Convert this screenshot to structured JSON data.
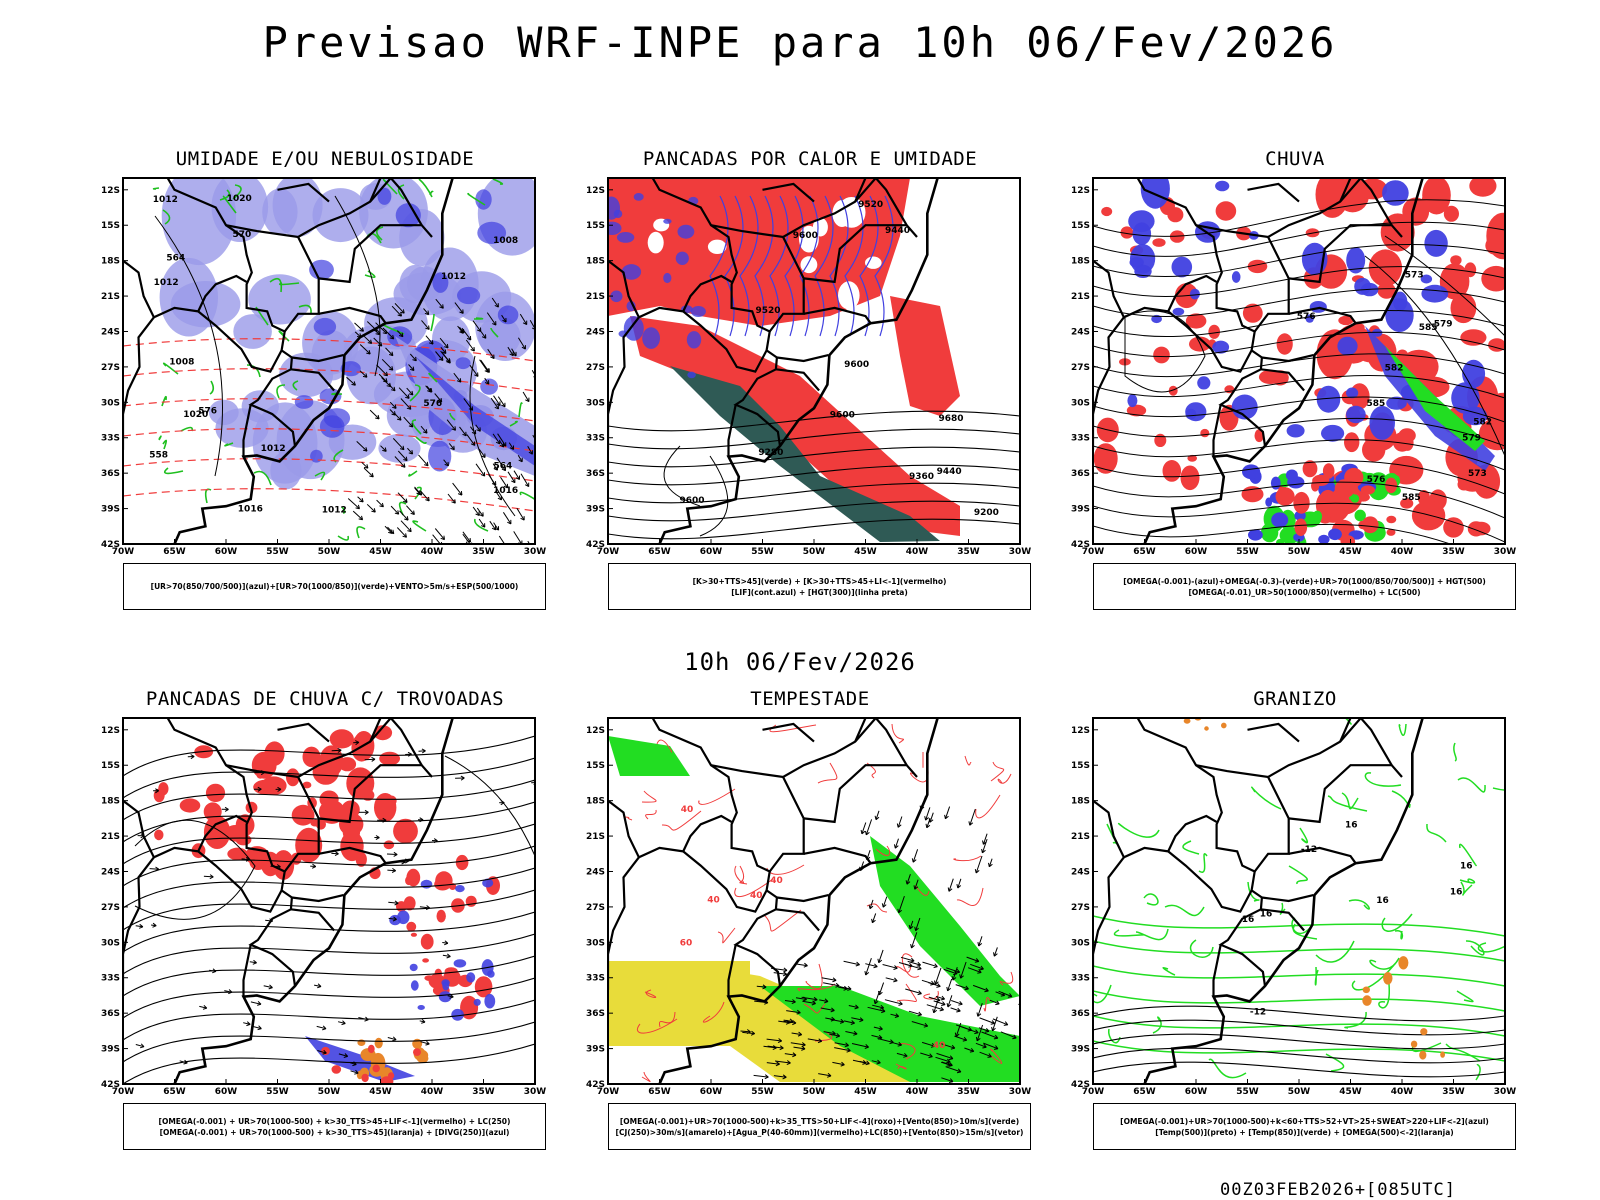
{
  "main_title": "Previsao WRF-INPE  para 10h 06/Fev/2026",
  "mid_title": "10h 06/Fev/2026",
  "footer": "00Z03FEB2026+[085UTC]",
  "axes": {
    "lat_labels": [
      "12S",
      "15S",
      "18S",
      "21S",
      "24S",
      "27S",
      "30S",
      "33S",
      "36S",
      "39S",
      "42S"
    ],
    "lon_labels": [
      "70W",
      "65W",
      "60W",
      "55W",
      "50W",
      "45W",
      "40W",
      "35W",
      "30W"
    ]
  },
  "colors": {
    "blue": "#4040e0",
    "lavender": "#9a9ae8",
    "green": "#1fbf1f",
    "bright_green": "#22dd22",
    "red": "#f03c3c",
    "dark_teal": "#2f5a55",
    "yellow": "#e8dc3a",
    "orange": "#e8862a"
  },
  "panels": [
    {
      "title": "UMIDADE E/OU NEBULOSIDADE",
      "legend": [
        "[UR>70(850/700/500)](azul)+[UR>70(1000/850)](verde)+VENTO>5m/s+ESP(500/1000)"
      ],
      "contour_labels": [
        "1012",
        "1012",
        "1012",
        "1012",
        "1012",
        "1016",
        "1016",
        "1020",
        "1020",
        "1008",
        "1008",
        "576",
        "576",
        "570",
        "564",
        "558",
        "564"
      ]
    },
    {
      "title": "PANCADAS POR CALOR E UMIDADE",
      "legend": [
        "[K>30+TTS>45](verde) + [K>30+TTS>45+LI<-1](vermelho)",
        "[LIF](cont.azul) + [HGT(300)](linha preta)"
      ],
      "contour_labels": [
        "9600",
        "9680",
        "9600",
        "9600",
        "9600",
        "9520",
        "9440",
        "9440",
        "9360",
        "9280",
        "9200",
        "9520"
      ]
    },
    {
      "title": "CHUVA",
      "legend": [
        "[OMEGA(-0.001)-(azul)+OMEGA(-0.3)-(verde)+UR>70(1000/850/700/500)] + HGT(500)",
        "[OMEGA(-0.01)_UR>50(1000/850)(vermelho) + LC(500)"
      ],
      "contour_labels": [
        "585",
        "582",
        "585",
        "579",
        "576",
        "573",
        "579",
        "576",
        "573",
        "585",
        "582"
      ]
    },
    {
      "title": "PANCADAS DE CHUVA C/ TROVOADAS",
      "legend": [
        "[OMEGA(-0.001) + UR>70(1000-500) + k>30_TTS>45+LIF<-1](vermelho) + LC(250)",
        "[OMEGA(-0.001) + UR>70(1000-500) + k>30_TTS>45](laranja) + [DIVG(250)](azul)"
      ],
      "contour_labels": []
    },
    {
      "title": "TEMPESTADE",
      "legend": [
        "[OMEGA(-0.001)+UR>70(1000-500)+k>35_TTS>50+LIF<-4](roxo)+[Vento(850)>10m/s](verde)",
        "[CJ(250)>30m/s](amarelo)+[Agua_P(40-60mm)](vermelho)+LC(850)+[Vento(850)>15m/s](vetor)"
      ],
      "contour_labels": [
        "40",
        "40",
        "40",
        "40",
        "60",
        "40"
      ]
    },
    {
      "title": "GRANIZO",
      "legend": [
        "[OMEGA(-0.001)+UR>70(1000-500)+k<60+TTS>52+VT>25+SWEAT>220+LIF<-2](azul)",
        "[Temp(500)](preto) + [Temp(850)](verde) + [OMEGA(500)<-2](laranja)"
      ],
      "contour_labels": [
        "-12",
        "-12",
        "16",
        "16",
        "16",
        "16",
        "16",
        "16"
      ]
    }
  ]
}
